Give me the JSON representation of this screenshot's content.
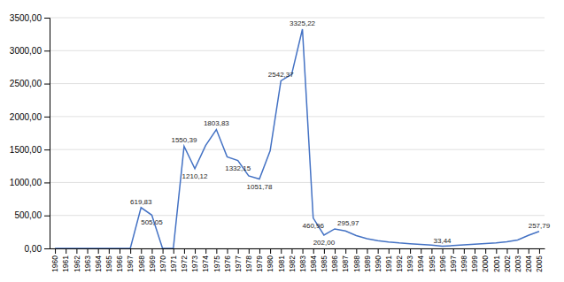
{
  "chart_data": {
    "type": "line",
    "x": [
      1960,
      1961,
      1962,
      1963,
      1964,
      1965,
      1966,
      1967,
      1968,
      1969,
      1970,
      1971,
      1972,
      1973,
      1974,
      1975,
      1976,
      1977,
      1978,
      1979,
      1980,
      1981,
      1982,
      1983,
      1984,
      1985,
      1986,
      1987,
      1988,
      1989,
      1990,
      1991,
      1992,
      1993,
      1994,
      1995,
      1996,
      1997,
      1998,
      1999,
      2000,
      2001,
      2002,
      2003,
      2004,
      2005
    ],
    "values": [
      0,
      0,
      0,
      0,
      0,
      0,
      0,
      0,
      619.83,
      505.05,
      0,
      0,
      1550.39,
      1210.12,
      1560.0,
      1803.83,
      1390.0,
      1332.15,
      1100.0,
      1051.78,
      1480.0,
      2542.37,
      2640.0,
      3325.22,
      460.96,
      202.0,
      295.97,
      265.0,
      195.0,
      148.0,
      118.0,
      98.0,
      83.0,
      72.0,
      60.0,
      50.0,
      33.44,
      42.0,
      52.0,
      65.0,
      73.0,
      84.0,
      102.0,
      128.0,
      198.0,
      257.79
    ],
    "color": "#4472C4",
    "xlim": [
      1959.5,
      2005.5
    ],
    "xticks": [
      1960,
      1961,
      1962,
      1963,
      1964,
      1965,
      1966,
      1967,
      1968,
      1969,
      1970,
      1971,
      1972,
      1973,
      1974,
      1975,
      1976,
      1977,
      1978,
      1979,
      1980,
      1981,
      1982,
      1983,
      1984,
      1985,
      1986,
      1987,
      1988,
      1989,
      1990,
      1991,
      1992,
      1993,
      1994,
      1995,
      1996,
      1997,
      1998,
      1999,
      2000,
      2001,
      2002,
      2003,
      2004,
      2005
    ],
    "ylim": [
      0,
      3500
    ],
    "yticks": [
      {
        "value": 0,
        "label": "0,00"
      },
      {
        "value": 500,
        "label": "500,00"
      },
      {
        "value": 1000,
        "label": "1000,00"
      },
      {
        "value": 1500,
        "label": "1500,00"
      },
      {
        "value": 2000,
        "label": "2000,00"
      },
      {
        "value": 2500,
        "label": "2500,00"
      },
      {
        "value": 3000,
        "label": "3000,00"
      },
      {
        "value": 3500,
        "label": "3500,00"
      }
    ],
    "grid": true,
    "annotations": [
      {
        "x": 1968,
        "y": 619.83,
        "label": "619,83"
      },
      {
        "x": 1969,
        "y": 505.05,
        "label": "505,05"
      },
      {
        "x": 1972,
        "y": 1550.39,
        "label": "1550,39"
      },
      {
        "x": 1973,
        "y": 1210.12,
        "label": "1210,12"
      },
      {
        "x": 1975,
        "y": 1803.83,
        "label": "1803,83"
      },
      {
        "x": 1977,
        "y": 1332.15,
        "label": "1332,15"
      },
      {
        "x": 1979,
        "y": 1051.78,
        "label": "1051,78"
      },
      {
        "x": 1981,
        "y": 2542.37,
        "label": "2542,37"
      },
      {
        "x": 1983,
        "y": 3325.22,
        "label": "3325,22"
      },
      {
        "x": 1984,
        "y": 460.96,
        "label": "460,96"
      },
      {
        "x": 1985,
        "y": 202.0,
        "label": "202,00"
      },
      {
        "x": 1986,
        "y": 295.97,
        "label": "295,97"
      },
      {
        "x": 1996,
        "y": 33.44,
        "label": "33,44"
      },
      {
        "x": 2005,
        "y": 257.79,
        "label": "257,79"
      }
    ]
  }
}
